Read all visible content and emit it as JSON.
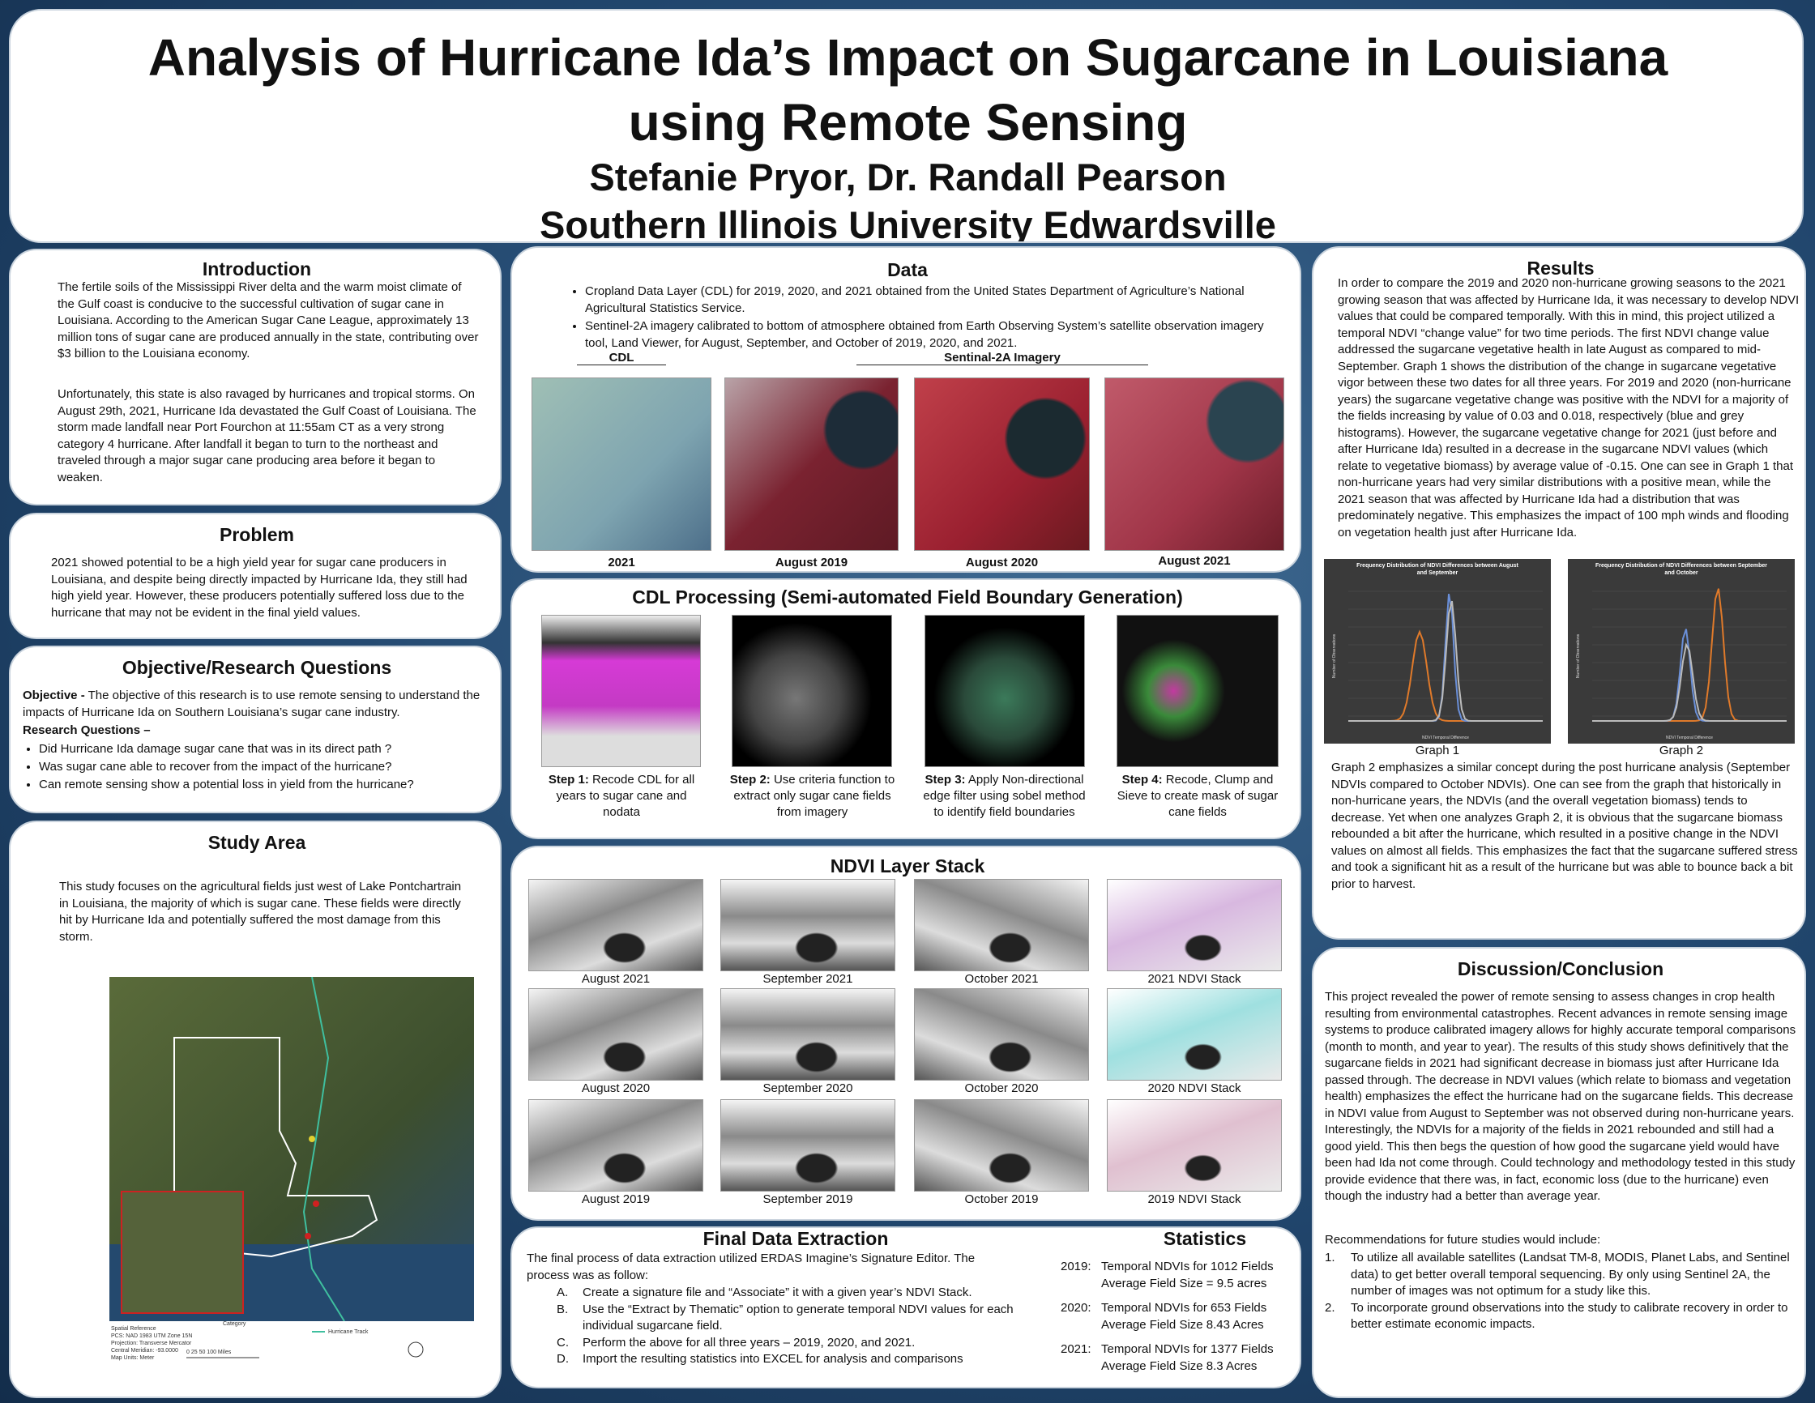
{
  "header": {
    "title": "Analysis of Hurricane Ida’s Impact on Sugarcane in Louisiana using Remote Sensing",
    "authors": "Stefanie Pryor, Dr. Randall Pearson",
    "affiliation": "Southern Illinois University Edwardsville"
  },
  "introduction": {
    "heading": "Introduction",
    "paragraphs": [
      "The fertile soils of the Mississippi River delta and the warm moist climate of the Gulf coast is conducive to the successful cultivation of sugar cane in Louisiana. According to the American Sugar Cane League, approximately 13 million tons of sugar cane are produced annually in the state, contributing over $3 billion to the Louisiana economy.",
      "Unfortunately, this state is also ravaged by hurricanes and tropical storms. On August 29th, 2021, Hurricane Ida devastated the Gulf Coast of Louisiana. The storm made landfall near Port Fourchon at 11:55am CT as a very strong category 4 hurricane. After landfall it began to turn to the northeast and traveled through a major sugar cane producing area before it  began to weaken."
    ]
  },
  "problem": {
    "heading": "Problem",
    "text": "2021 showed potential to be a high yield year for  sugar cane producers in Louisiana, and despite being directly  impacted by Hurricane Ida, they still had high yield year. However, these producers potentially suffered loss due to the hurricane that may not be evident in the final yield values."
  },
  "objective": {
    "heading": "Objective/Research Questions",
    "objective_label": "Objective -",
    "objective_text": " The objective of this research is to use remote sensing to understand the impacts of Hurricane Ida on Southern Louisiana’s sugar cane industry.",
    "questions_label": "Research Questions –",
    "questions": [
      "Did Hurricane Ida damage sugar cane that was in its direct path ?",
      "Was sugar cane able to recover from the impact of the hurricane?",
      "Can remote sensing show a potential loss in yield from the hurricane?"
    ]
  },
  "study_area": {
    "heading": "Study Area",
    "text": "This study focuses on the agricultural fields just west of Lake Pontchartrain in Louisiana, the majority of which is sugar cane. These fields were directly hit by Hurricane Ida and potentially suffered the most damage from this storm.",
    "map": {
      "reference": [
        "Spatial Reference",
        "PCS: NAD 1983 UTM Zone 15N",
        "Projection: Transverse Mercator",
        "Central Meridian: -93.0000",
        "Map Units: Meter"
      ],
      "legend_title": "Category",
      "legend_track": "Hurricane Track",
      "scale": "0   25   50        100 Miles"
    }
  },
  "data": {
    "heading": "Data",
    "bullets": [
      "Cropland Data Layer (CDL) for 2019, 2020, and 2021 obtained from the United States Department of Agriculture’s National Agricultural Statistics Service.",
      "Sentinel-2A imagery calibrated to bottom of atmosphere obtained from Earth Observing System’s satellite observation imagery tool, Land Viewer, for  August, September, and October of 2019, 2020, and 2021."
    ],
    "group_labels": [
      "CDL",
      "Sentinal-2A Imagery"
    ],
    "captions": [
      "2021",
      "August 2019",
      "August 2020",
      "August 2021"
    ]
  },
  "cdl_processing": {
    "heading": "CDL Processing (Semi-automated Field Boundary Generation)",
    "steps": [
      {
        "label": "Step 1:",
        "text": " Recode CDL for all years to sugar cane and nodata"
      },
      {
        "label": "Step 2:",
        "text": " Use criteria function to extract only sugar cane fields from imagery"
      },
      {
        "label": "Step 3:",
        "text": " Apply Non-directional edge filter using sobel method to identify field boundaries"
      },
      {
        "label": "Step 4:",
        "text": " Recode, Clump and Sieve to create mask of sugar cane fields"
      }
    ]
  },
  "ndvi": {
    "heading": "NDVI Layer Stack",
    "captions": [
      "August 2021",
      "September 2021",
      "October 2021",
      "2021 NDVI Stack",
      "August 2020",
      "September 2020",
      "October 2020",
      "2020 NDVI Stack",
      "August 2019",
      "September 2019",
      "October 2019",
      "2019 NDVI Stack"
    ]
  },
  "final_extraction": {
    "heading": "Final Data Extraction",
    "intro": "The final process of data extraction utilized ERDAS Imagine’s Signature Editor. The process was as follow:",
    "items": [
      {
        "marker": "A.",
        "text": "Create a signature file and “Associate” it with a given year’s NDVI Stack."
      },
      {
        "marker": "B.",
        "text": "Use the “Extract by Thematic” option to generate temporal NDVI values for each individual sugarcane field."
      },
      {
        "marker": "C.",
        "text": "Perform the above for all three years – 2019, 2020, and 2021."
      },
      {
        "marker": "D.",
        "text": "Import the resulting statistics into EXCEL for analysis and comparisons"
      }
    ]
  },
  "statistics": {
    "heading": "Statistics",
    "rows": [
      {
        "year": "2019:",
        "line1": "Temporal NDVIs for 1012 Fields",
        "line2": "Average Field Size = 9.5 acres"
      },
      {
        "year": "2020:",
        "line1": "Temporal NDVIs for 653 Fields",
        "line2": "Average Field Size 8.43 Acres"
      },
      {
        "year": "2021:",
        "line1": "Temporal NDVIs for 1377 Fields",
        "line2": "Average Field Size 8.3 Acres"
      }
    ]
  },
  "results": {
    "heading": "Results",
    "paragraphs": [
      "In order to compare the 2019 and 2020 non-hurricane growing seasons to the 2021 growing season that was affected by Hurricane Ida, it was necessary to develop NDVI values that could be compared temporally.  With this in mind, this project utilized a temporal NDVI “change value” for two time periods.  The first NDVI  change value addressed the sugarcane vegetative health in late August as compared to mid-September.  Graph 1 shows the distribution of the change in sugarcane vegetative vigor between these two dates for all three years.  For 2019 and 2020 (non-hurricane years) the sugarcane vegetative change was positive with the NDVI for a majority of the fields increasing by value of 0.03 and 0.018, respectively (blue and grey histograms).  However, the sugarcane vegetative change for 2021 (just before and after Hurricane Ida) resulted in a decrease in the sugarcane NDVI values (which relate to vegetative biomass) by average value of -0.15.  One can see in Graph 1 that non-hurricane years had very similar distributions with a positive mean, while the 2021 season that was affected by Hurricane Ida had a distribution that was predominately negative.  This emphasizes the impact of 100 mph winds and flooding on vegetation health just after Hurricane Ida.",
      "Graph 2 emphasizes a similar concept during the post hurricane analysis (September NDVIs compared to October NDVIs).  One can see from the graph that historically in non-hurricane years, the NDVIs (and the overall vegetation biomass) tends to decrease.  Yet when one analyzes Graph 2, it is obvious that the sugarcane biomass rebounded a bit after the hurricane, which resulted in a positive change in the NDVI values on almost all fields.  This emphasizes the fact that the sugarcane suffered stress and took a significant hit as a result of the hurricane but was able to bounce back a bit prior to harvest."
    ],
    "graphs": [
      {
        "title": "Frequency Distribution of NDVI Differences between August and September",
        "x_label": "NDVI Temporal Difference",
        "y_label": "Number of Observations",
        "caption": "Graph 1"
      },
      {
        "title": "Frequency Distribution of NDVI Differences between September and October",
        "x_label": "NDVI Temporal Difference",
        "y_label": "Number of Observations",
        "caption": "Graph 2"
      }
    ]
  },
  "discussion": {
    "heading": "Discussion/Conclusion",
    "text": "This project revealed the power of remote sensing to assess changes in crop health resulting from environmental catastrophes.  Recent advances in remote sensing image systems to produce calibrated imagery allows for highly accurate temporal comparisons (month to month, and year to year).  The results of this study shows definitively that the sugarcane fields in 2021 had significant decrease in biomass just after Hurricane Ida passed through.  The decrease in NDVI values (which relate to biomass and vegetation health) emphasizes the effect the hurricane had on the sugarcane fields.  This decrease in NDVI value from August to September was not observed during non-hurricane years.  Interestingly, the NDVIs for a majority of the fields in 2021 rebounded and still had a good yield.  This then begs the question of how good the sugarcane yield would have been had Ida not come through.  Could technology and methodology tested in this study provide evidence that there was, in fact, economic loss (due to the hurricane) even though the industry had a better than average year.",
    "recommendations_intro": "Recommendations for future studies would include:",
    "recommendations": [
      {
        "marker": "1.",
        "text": "To utilize all available satellites (Landsat TM-8, MODIS, Planet Labs, and Sentinel data) to get better overall temporal sequencing.  By only using Sentinel 2A, the number of images was not optimum for a study like this."
      },
      {
        "marker": "2.",
        "text": "To incorporate ground observations into the study to calibrate recovery in order to better estimate economic impacts."
      }
    ]
  }
}
